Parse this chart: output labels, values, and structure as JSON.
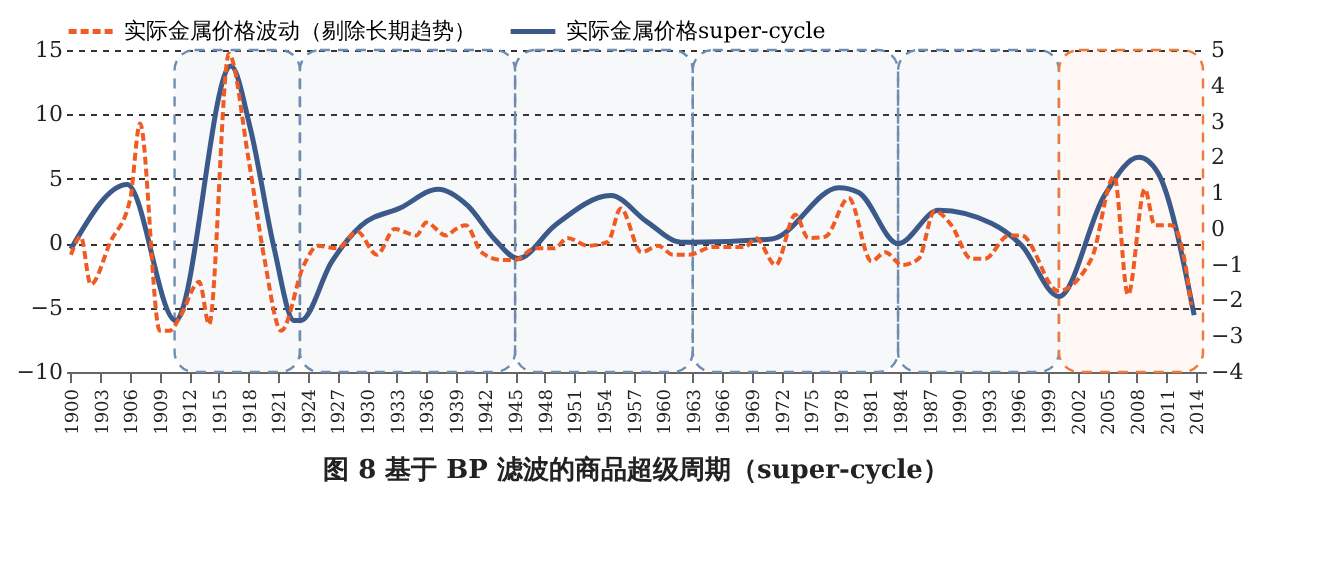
{
  "chart_data": {
    "type": "line",
    "title": "图 8 基于 BP 滤波的商品超级周期（super-cycle）",
    "xlim": [
      1899.5,
      2015
    ],
    "xticks": [
      1900,
      1903,
      1906,
      1909,
      1912,
      1915,
      1918,
      1921,
      1924,
      1927,
      1930,
      1933,
      1936,
      1939,
      1942,
      1945,
      1948,
      1951,
      1954,
      1957,
      1960,
      1963,
      1966,
      1969,
      1972,
      1975,
      1978,
      1981,
      1984,
      1987,
      1990,
      1993,
      1996,
      1999,
      2002,
      2005,
      2008,
      2011,
      2014
    ],
    "ylim": [
      -10,
      15
    ],
    "yticks": [
      -10,
      -5,
      0,
      5,
      10,
      15
    ],
    "y2lim": [
      -4,
      5
    ],
    "y2ticks": [
      -4,
      -3,
      -2,
      -1,
      0,
      1,
      2,
      3,
      4,
      5
    ],
    "grid": "y",
    "legend": "top",
    "series": [
      {
        "name": "实际金属价格波动（剔除长期趋势）",
        "color": "#f05a23",
        "line_style": "dashed",
        "x": [
          1900,
          1901,
          1902,
          1904,
          1906,
          1907,
          1909,
          1910,
          1911,
          1913,
          1914,
          1916,
          1918,
          1919.6,
          1921.3,
          1923.6,
          1925,
          1927,
          1929,
          1931,
          1932.8,
          1935,
          1936,
          1938,
          1939,
          1940,
          1941.6,
          1943.6,
          1945,
          1947,
          1949,
          1950.3,
          1952.4,
          1954.4,
          1955.7,
          1957.8,
          1959.5,
          1961,
          1962.6,
          1965,
          1968.3,
          1969.4,
          1971.4,
          1973.4,
          1974.7,
          1976.4,
          1978.8,
          1981.1,
          1982.5,
          1984.2,
          1985.9,
          1987.5,
          1989.2,
          1991.2,
          1992.6,
          1995,
          1996.3,
          2000,
          2003.4,
          2005.7,
          2007.1,
          2008.8,
          2009.8,
          2011.5,
          2012.8,
          2013.5
        ],
        "values": [
          -0.9,
          0.5,
          -3.2,
          0.1,
          3.4,
          9.3,
          -6.8,
          -6.8,
          -5.8,
          -3.0,
          -6.3,
          14.7,
          6.5,
          -1.2,
          -6.8,
          -1.7,
          -0.2,
          -0.4,
          0.9,
          -0.9,
          1.1,
          0.6,
          1.6,
          0.6,
          1.1,
          1.4,
          -0.7,
          -1.3,
          -1.3,
          -0.4,
          -0.4,
          0.4,
          -0.2,
          0.1,
          2.7,
          -0.7,
          -0.2,
          -0.9,
          -0.9,
          -0.3,
          -0.3,
          0.4,
          -1.7,
          2.2,
          0.4,
          0.5,
          3.5,
          -1.4,
          -0.7,
          -1.7,
          -1.2,
          2.5,
          1.4,
          -1.2,
          -1.2,
          0.6,
          0.6,
          -3.7,
          -1.2,
          5.2,
          -4.0,
          4.2,
          1.4,
          1.4,
          -1.2,
          -4.8
        ]
      },
      {
        "name": "实际金属价格super-cycle",
        "color": "#3b5a8a",
        "line_style": "solid",
        "axis": "y2",
        "x": [
          1900,
          1905.7,
          1910.6,
          1916.2,
          1918.2,
          1920.6,
          1922.6,
          1923.3,
          1926.4,
          1929.4,
          1933.4,
          1937.2,
          1940.2,
          1942.9,
          1945.3,
          1949,
          1954.7,
          1958.4,
          1961.8,
          1963,
          1971,
          1977.8,
          1979.8,
          1983.8,
          1987.9,
          1993.3,
          1996.3,
          2000.1,
          2004.7,
          2008.2,
          2010.1,
          2013.8
        ],
        "values": [
          -0.56,
          1.24,
          -2.56,
          4.55,
          2.78,
          -0.56,
          -2.56,
          -2.56,
          -0.93,
          0.09,
          0.59,
          1.11,
          0.65,
          -0.28,
          -0.83,
          0.09,
          0.93,
          0.19,
          -0.37,
          -0.37,
          -0.28,
          1.15,
          1.02,
          -0.41,
          0.52,
          0.15,
          -0.46,
          -1.89,
          0.93,
          2.0,
          1.58,
          -2.41
        ]
      }
    ],
    "bands": [
      {
        "axis": "x",
        "from": 1910.5,
        "to": 1923.2,
        "color": "#6f8db0"
      },
      {
        "axis": "x",
        "from": 1923.2,
        "to": 1945,
        "color": "#6f8db0"
      },
      {
        "axis": "x",
        "from": 1945,
        "to": 1963,
        "color": "#6f8db0"
      },
      {
        "axis": "x",
        "from": 1963,
        "to": 1983.8,
        "color": "#6f8db0"
      },
      {
        "axis": "x",
        "from": 1983.8,
        "to": 2000.1,
        "color": "#6f8db0"
      },
      {
        "axis": "x",
        "from": 2000.1,
        "to": 2014.7,
        "color": "#f07a3a"
      }
    ]
  }
}
